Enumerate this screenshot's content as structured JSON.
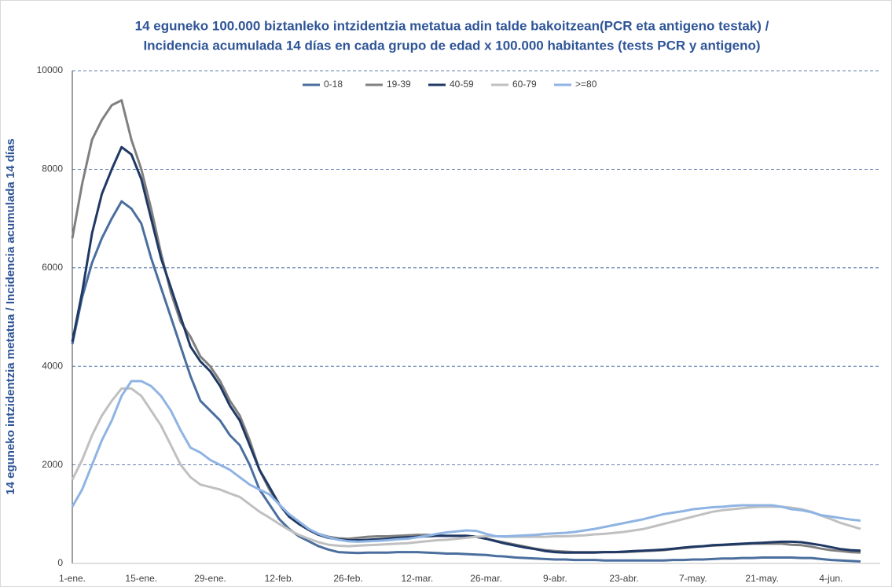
{
  "chart_data": {
    "type": "line",
    "title": [
      "14 eguneko 100.000 biztanleko intzidentzia metatua adin talde bakoitzean(PCR eta antigeno testak) /",
      "Incidencia acumulada 14 días en cada grupo de edad x 100.000 habitantes (tests PCR y antigeno)"
    ],
    "y_label": "14 eguneko intzidentzia metatua / Incidencia acumulada 14 días",
    "categories": [
      "1-ene.",
      null,
      null,
      null,
      null,
      null,
      null,
      "15-ene.",
      null,
      null,
      null,
      null,
      null,
      null,
      "29-ene.",
      null,
      null,
      null,
      null,
      null,
      null,
      "12-feb.",
      null,
      null,
      null,
      null,
      null,
      null,
      "26-feb.",
      null,
      null,
      null,
      null,
      null,
      null,
      "12-mar.",
      null,
      null,
      null,
      null,
      null,
      null,
      "26-mar.",
      null,
      null,
      null,
      null,
      null,
      null,
      "9-abr.",
      null,
      null,
      null,
      null,
      null,
      null,
      "23-abr.",
      null,
      null,
      null,
      null,
      null,
      null,
      "7-may.",
      null,
      null,
      null,
      null,
      null,
      null,
      "21-may.",
      null,
      null,
      null,
      null,
      null,
      null,
      "4-jun.",
      null,
      null,
      null
    ],
    "series": [
      {
        "name": "0-18",
        "color": "#4a6e9e",
        "values": [
          4450,
          5400,
          6100,
          6600,
          7000,
          7350,
          7200,
          6900,
          6200,
          5600,
          5000,
          4400,
          3800,
          3300,
          3100,
          2900,
          2600,
          2400,
          2000,
          1500,
          1200,
          900,
          700,
          550,
          450,
          350,
          280,
          230,
          220,
          210,
          220,
          220,
          220,
          230,
          230,
          230,
          220,
          210,
          200,
          200,
          190,
          180,
          170,
          150,
          140,
          120,
          110,
          100,
          90,
          80,
          80,
          70,
          70,
          70,
          60,
          60,
          60,
          60,
          60,
          60,
          60,
          70,
          70,
          80,
          80,
          90,
          100,
          100,
          110,
          110,
          120,
          120,
          120,
          120,
          110,
          110,
          90,
          70,
          60,
          50,
          40
        ]
      },
      {
        "name": "19-39",
        "color": "#808080",
        "values": [
          6600,
          7700,
          8600,
          9000,
          9300,
          9400,
          8600,
          8000,
          7200,
          6300,
          5500,
          4900,
          4600,
          4200,
          4000,
          3700,
          3300,
          3000,
          2500,
          1900,
          1500,
          1200,
          950,
          800,
          680,
          600,
          540,
          510,
          500,
          520,
          540,
          550,
          550,
          560,
          570,
          580,
          580,
          570,
          560,
          560,
          560,
          540,
          500,
          460,
          420,
          380,
          340,
          300,
          270,
          250,
          240,
          230,
          230,
          230,
          230,
          230,
          230,
          240,
          250,
          260,
          270,
          290,
          310,
          330,
          350,
          360,
          370,
          380,
          390,
          400,
          400,
          400,
          400,
          380,
          370,
          340,
          300,
          270,
          250,
          230,
          220
        ]
      },
      {
        "name": "40-59",
        "color": "#1f3864",
        "values": [
          4500,
          5500,
          6700,
          7500,
          8000,
          8450,
          8300,
          7800,
          7000,
          6200,
          5600,
          5000,
          4400,
          4100,
          3900,
          3600,
          3200,
          2900,
          2400,
          1900,
          1550,
          1200,
          950,
          800,
          680,
          580,
          520,
          490,
          470,
          470,
          480,
          490,
          500,
          520,
          530,
          540,
          550,
          560,
          560,
          560,
          560,
          540,
          500,
          450,
          400,
          360,
          320,
          290,
          250,
          230,
          220,
          220,
          220,
          220,
          230,
          230,
          240,
          250,
          260,
          270,
          280,
          300,
          320,
          340,
          350,
          370,
          380,
          390,
          400,
          410,
          420,
          430,
          440,
          440,
          430,
          400,
          370,
          330,
          290,
          270,
          260
        ]
      },
      {
        "name": "60-79",
        "color": "#c0c0c0",
        "values": [
          1700,
          2100,
          2600,
          3000,
          3300,
          3550,
          3550,
          3400,
          3100,
          2800,
          2400,
          2000,
          1750,
          1600,
          1550,
          1500,
          1420,
          1350,
          1200,
          1050,
          930,
          800,
          680,
          580,
          500,
          430,
          380,
          360,
          350,
          360,
          370,
          380,
          390,
          400,
          410,
          430,
          450,
          470,
          480,
          500,
          520,
          540,
          550,
          550,
          540,
          540,
          540,
          540,
          540,
          550,
          550,
          560,
          570,
          590,
          600,
          620,
          640,
          670,
          700,
          750,
          800,
          850,
          900,
          950,
          1000,
          1050,
          1080,
          1100,
          1120,
          1140,
          1150,
          1150,
          1150,
          1130,
          1100,
          1050,
          970,
          900,
          820,
          760,
          700
        ]
      },
      {
        "name": ">=80",
        "color": "#8fb4e3",
        "values": [
          1150,
          1500,
          2000,
          2500,
          2900,
          3400,
          3700,
          3700,
          3600,
          3400,
          3100,
          2700,
          2350,
          2250,
          2100,
          2000,
          1900,
          1750,
          1600,
          1500,
          1400,
          1200,
          1000,
          850,
          700,
          600,
          530,
          480,
          450,
          440,
          450,
          460,
          470,
          490,
          500,
          530,
          560,
          600,
          630,
          650,
          670,
          660,
          600,
          550,
          550,
          560,
          570,
          580,
          600,
          610,
          620,
          640,
          670,
          700,
          740,
          780,
          820,
          860,
          900,
          950,
          1000,
          1030,
          1060,
          1100,
          1120,
          1140,
          1150,
          1170,
          1180,
          1180,
          1180,
          1180,
          1150,
          1100,
          1080,
          1040,
          980,
          950,
          920,
          890,
          870
        ]
      }
    ],
    "ylim": [
      0,
      10000
    ],
    "yticks": [
      0,
      2000,
      4000,
      6000,
      8000,
      10000
    ],
    "grid": true,
    "legend": "top"
  }
}
